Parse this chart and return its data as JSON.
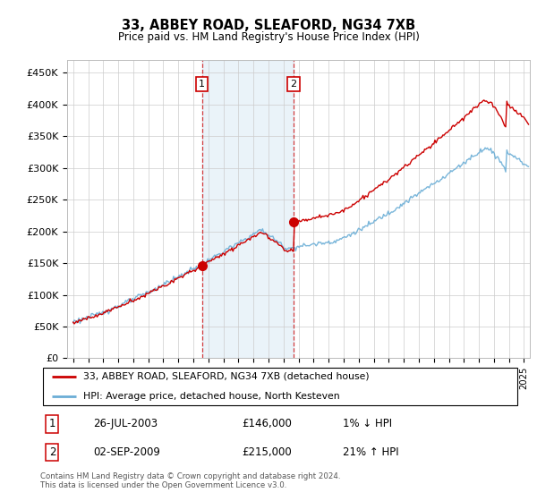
{
  "title": "33, ABBEY ROAD, SLEAFORD, NG34 7XB",
  "subtitle": "Price paid vs. HM Land Registry's House Price Index (HPI)",
  "ylim": [
    0,
    470000
  ],
  "yticks": [
    0,
    50000,
    100000,
    150000,
    200000,
    250000,
    300000,
    350000,
    400000,
    450000
  ],
  "ytick_labels": [
    "£0",
    "£50K",
    "£100K",
    "£150K",
    "£200K",
    "£250K",
    "£300K",
    "£350K",
    "£400K",
    "£450K"
  ],
  "hpi_color": "#6baed6",
  "price_color": "#cc0000",
  "shade_color": "#d6e8f5",
  "shade_alpha": 0.5,
  "marker1_x": 2003.57,
  "marker1_y": 146000,
  "marker2_x": 2009.67,
  "marker2_y": 215000,
  "marker1_date": "26-JUL-2003",
  "marker1_price": "£146,000",
  "marker1_hpi": "1% ↓ HPI",
  "marker2_date": "02-SEP-2009",
  "marker2_price": "£215,000",
  "marker2_hpi": "21% ↑ HPI",
  "legend_line1": "33, ABBEY ROAD, SLEAFORD, NG34 7XB (detached house)",
  "legend_line2": "HPI: Average price, detached house, North Kesteven",
  "footnote": "Contains HM Land Registry data © Crown copyright and database right 2024.\nThis data is licensed under the Open Government Licence v3.0.",
  "background_color": "#ffffff",
  "grid_color": "#cccccc",
  "xlim_left": 1994.6,
  "xlim_right": 2025.4
}
